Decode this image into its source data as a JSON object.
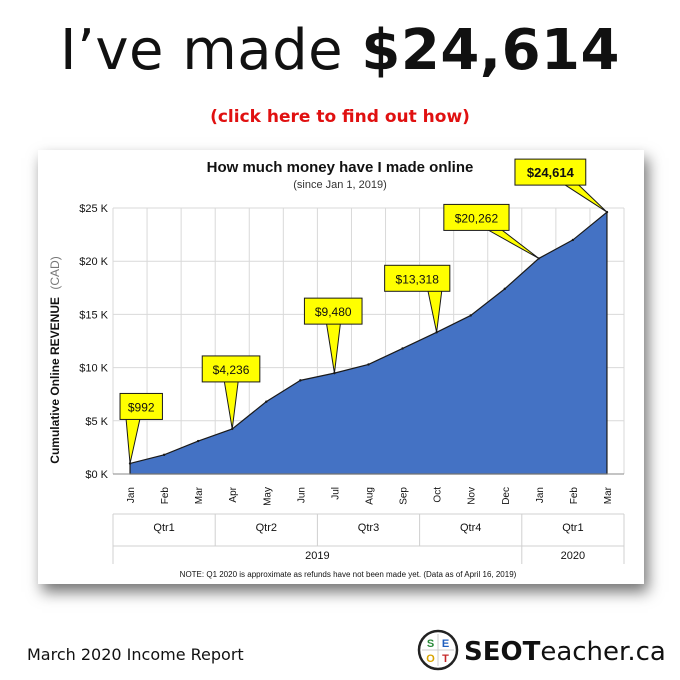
{
  "header": {
    "prefix": "I’ve made",
    "amount": "$24,614",
    "cta": "(click here to find out how)"
  },
  "chart_data": {
    "type": "area",
    "title": "How much money have I made online",
    "subtitle": "(since Jan 1, 2019)",
    "ylabel_main": "Cumulative Online REVENUE",
    "ylabel_unit": "(CAD)",
    "ylim": [
      0,
      25000
    ],
    "yticks": [
      {
        "value": 0,
        "label": "$0 K"
      },
      {
        "value": 5000,
        "label": "$5 K"
      },
      {
        "value": 10000,
        "label": "$10 K"
      },
      {
        "value": 15000,
        "label": "$15 K"
      },
      {
        "value": 20000,
        "label": "$20 K"
      },
      {
        "value": 25000,
        "label": "$25 K"
      }
    ],
    "grid": true,
    "categories": [
      "Jan",
      "Feb",
      "Mar",
      "Apr",
      "May",
      "Jun",
      "Jul",
      "Aug",
      "Sep",
      "Oct",
      "Nov",
      "Dec",
      "Jan",
      "Feb",
      "Mar"
    ],
    "quarters": [
      {
        "label": "Qtr1",
        "start": 0,
        "end": 2
      },
      {
        "label": "Qtr2",
        "start": 3,
        "end": 5
      },
      {
        "label": "Qtr3",
        "start": 6,
        "end": 8
      },
      {
        "label": "Qtr4",
        "start": 9,
        "end": 11
      },
      {
        "label": "Qtr1",
        "start": 12,
        "end": 14
      }
    ],
    "years": [
      {
        "label": "2019",
        "start": 0,
        "end": 11
      },
      {
        "label": "2020",
        "start": 12,
        "end": 14
      }
    ],
    "values": [
      992,
      1800,
      3100,
      4236,
      6800,
      8800,
      9480,
      10300,
      11800,
      13318,
      14900,
      17400,
      20262,
      22000,
      24614
    ],
    "fill_color": "#4472c4",
    "callout_color": "#ffff00",
    "callouts": [
      {
        "index": 0,
        "label": "$992",
        "bold": false
      },
      {
        "index": 3,
        "label": "$4,236",
        "bold": false
      },
      {
        "index": 6,
        "label": "$9,480",
        "bold": false
      },
      {
        "index": 9,
        "label": "$13,318",
        "bold": false
      },
      {
        "index": 12,
        "label": "$20,262",
        "bold": false
      },
      {
        "index": 14,
        "label": "$24,614",
        "bold": true
      }
    ],
    "note": "NOTE: Q1 2020  is approximate as refunds have not been made yet. (Data as of April 16, 2019)"
  },
  "footer": {
    "report_label": "March 2020 Income Report",
    "logo_letters": [
      "S",
      "E",
      "O",
      "T"
    ],
    "brand_bold": "SEOT",
    "brand_rest": "eacher.ca"
  }
}
